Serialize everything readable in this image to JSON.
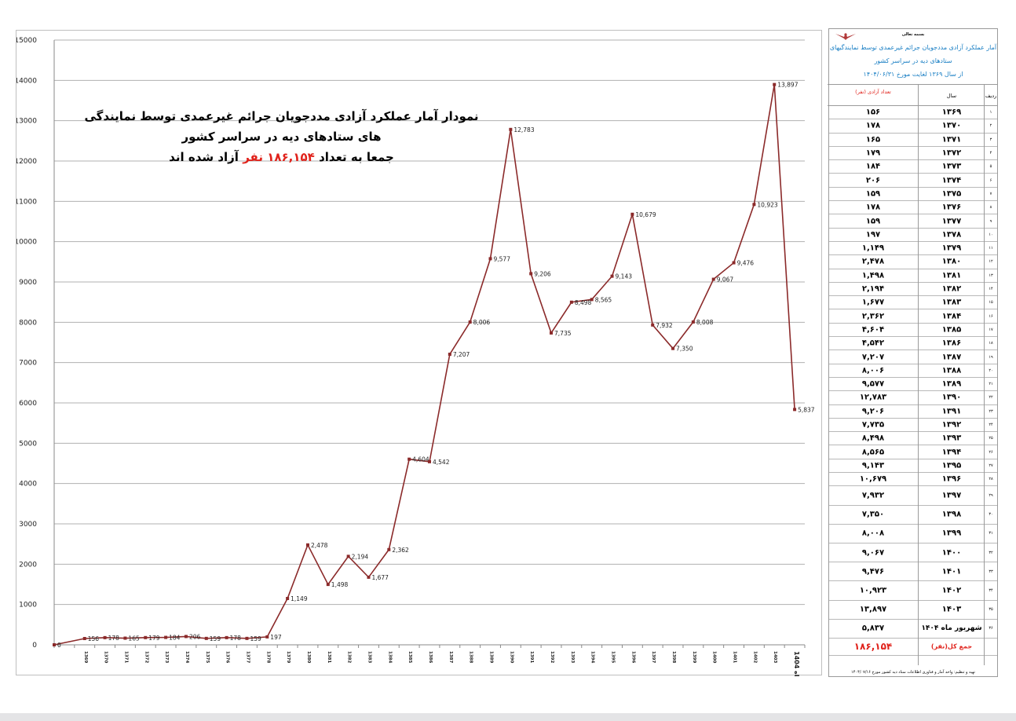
{
  "chart_data": {
    "type": "line",
    "title": "نمودار آمار عملکرد آزادی مددجویان جرائم غیرعمدی توسط نمایندگی های ستادهای دیه  در سراسر کشور",
    "subtitle_parts": [
      "جمعا به تعداد",
      "۱۸۶,۱۵۴",
      "نفر",
      "آزاد شده اند"
    ],
    "ylim": [
      0,
      15000
    ],
    "yticks": [
      0,
      1000,
      2000,
      3000,
      4000,
      5000,
      6000,
      7000,
      8000,
      9000,
      10000,
      11000,
      12000,
      13000,
      14000,
      15000
    ],
    "grid": true,
    "line_color": "#8b2a2a",
    "x": [
      "",
      "1369",
      "1370",
      "1371",
      "1372",
      "1373",
      "1374",
      "1375",
      "1376",
      "1377",
      "1378",
      "1379",
      "1380",
      "1381",
      "1382",
      "1383",
      "1384",
      "1385",
      "1386",
      "1387",
      "1388",
      "1389",
      "1390",
      "1391",
      "1392",
      "1393",
      "1394",
      "1395",
      "1396",
      "1397",
      "1398",
      "1399",
      "1400",
      "1401",
      "1402",
      "1403",
      "شهریور ماه 1404"
    ],
    "values": [
      0,
      156,
      178,
      165,
      179,
      184,
      206,
      159,
      178,
      159,
      197,
      1149,
      2478,
      1498,
      2194,
      1677,
      2362,
      4604,
      4542,
      7207,
      8006,
      9577,
      12783,
      9206,
      7735,
      8498,
      8565,
      9143,
      10679,
      7932,
      7350,
      8008,
      9067,
      9476,
      10923,
      13897,
      5837
    ],
    "data_labels": [
      "0",
      "156",
      "178",
      "165",
      "179",
      "184",
      "206",
      "159",
      "178",
      "159",
      "197",
      "1,149",
      "2,478",
      "1,498",
      "2,194",
      "1,677",
      "2,362",
      "4,604",
      "4,542",
      "7,207",
      "8,006",
      "9,577",
      "12,783",
      "9,206",
      "7,735",
      "8,498",
      "8,565",
      "9,143",
      "10,679",
      "7,932",
      "7,350",
      "8,008",
      "9,067",
      "9,476",
      "10,923",
      "13,897",
      "5,837"
    ]
  },
  "table": {
    "org": "بسمه تعالی",
    "title_lines": [
      "آمار عملکرد آزادی مددجویان جرائم غیرعمدی توسط نمایندگیهای",
      "ستادهای دیه در سراسر کشور",
      "از سال ۱۳۶۹ لغایت مورخ ۱۴۰۴/۰۶/۳۱"
    ],
    "col_headers": {
      "idx": "ردیف",
      "year": "سال",
      "count": "تعداد آزادی (نفر)"
    },
    "rows": [
      {
        "idx": "۱",
        "year": "۱۳۶۹",
        "count": "۱۵۶"
      },
      {
        "idx": "۲",
        "year": "۱۳۷۰",
        "count": "۱۷۸"
      },
      {
        "idx": "۳",
        "year": "۱۳۷۱",
        "count": "۱۶۵"
      },
      {
        "idx": "۴",
        "year": "۱۳۷۲",
        "count": "۱۷۹"
      },
      {
        "idx": "۵",
        "year": "۱۳۷۳",
        "count": "۱۸۴"
      },
      {
        "idx": "۶",
        "year": "۱۳۷۴",
        "count": "۲۰۶"
      },
      {
        "idx": "۷",
        "year": "۱۳۷۵",
        "count": "۱۵۹"
      },
      {
        "idx": "۸",
        "year": "۱۳۷۶",
        "count": "۱۷۸"
      },
      {
        "idx": "۹",
        "year": "۱۳۷۷",
        "count": "۱۵۹"
      },
      {
        "idx": "۱۰",
        "year": "۱۳۷۸",
        "count": "۱۹۷"
      },
      {
        "idx": "۱۱",
        "year": "۱۳۷۹",
        "count": "۱,۱۴۹"
      },
      {
        "idx": "۱۲",
        "year": "۱۳۸۰",
        "count": "۲,۴۷۸"
      },
      {
        "idx": "۱۳",
        "year": "۱۳۸۱",
        "count": "۱,۴۹۸"
      },
      {
        "idx": "۱۴",
        "year": "۱۳۸۲",
        "count": "۲,۱۹۴"
      },
      {
        "idx": "۱۵",
        "year": "۱۳۸۳",
        "count": "۱,۶۷۷"
      },
      {
        "idx": "۱۶",
        "year": "۱۳۸۴",
        "count": "۲,۳۶۲"
      },
      {
        "idx": "۱۷",
        "year": "۱۳۸۵",
        "count": "۴,۶۰۴"
      },
      {
        "idx": "۱۸",
        "year": "۱۳۸۶",
        "count": "۴,۵۴۲"
      },
      {
        "idx": "۱۹",
        "year": "۱۳۸۷",
        "count": "۷,۲۰۷"
      },
      {
        "idx": "۲۰",
        "year": "۱۳۸۸",
        "count": "۸,۰۰۶"
      },
      {
        "idx": "۲۱",
        "year": "۱۳۸۹",
        "count": "۹,۵۷۷"
      },
      {
        "idx": "۲۲",
        "year": "۱۳۹۰",
        "count": "۱۲,۷۸۳"
      },
      {
        "idx": "۲۳",
        "year": "۱۳۹۱",
        "count": "۹,۲۰۶"
      },
      {
        "idx": "۲۴",
        "year": "۱۳۹۲",
        "count": "۷,۷۳۵"
      },
      {
        "idx": "۲۵",
        "year": "۱۳۹۳",
        "count": "۸,۴۹۸"
      },
      {
        "idx": "۲۶",
        "year": "۱۳۹۴",
        "count": "۸,۵۶۵"
      },
      {
        "idx": "۲۷",
        "year": "۱۳۹۵",
        "count": "۹,۱۴۳"
      },
      {
        "idx": "۲۸",
        "year": "۱۳۹۶",
        "count": "۱۰,۶۷۹"
      },
      {
        "idx": "۲۹",
        "year": "۱۳۹۷",
        "count": "۷,۹۳۲"
      },
      {
        "idx": "۳۰",
        "year": "۱۳۹۸",
        "count": "۷,۳۵۰"
      },
      {
        "idx": "۳۱",
        "year": "۱۳۹۹",
        "count": "۸,۰۰۸"
      },
      {
        "idx": "۳۲",
        "year": "۱۴۰۰",
        "count": "۹,۰۶۷"
      },
      {
        "idx": "۳۳",
        "year": "۱۴۰۱",
        "count": "۹,۴۷۶"
      },
      {
        "idx": "۳۴",
        "year": "۱۴۰۲",
        "count": "۱۰,۹۲۳"
      },
      {
        "idx": "۳۵",
        "year": "۱۴۰۳",
        "count": "۱۳,۸۹۷"
      },
      {
        "idx": "۳۶",
        "year": "شهریور ماه ۱۴۰۴",
        "count": "۵,۸۳۷"
      }
    ],
    "total_label": "جمع کل(نفر)",
    "total_value": "۱۸۶,۱۵۴",
    "footer": "تهیه و تنظیم: واحد آمار و فناوری اطلاعات ستاد دیه کشور مورخ ۱۴۰۴/۰۷/۱۶"
  }
}
